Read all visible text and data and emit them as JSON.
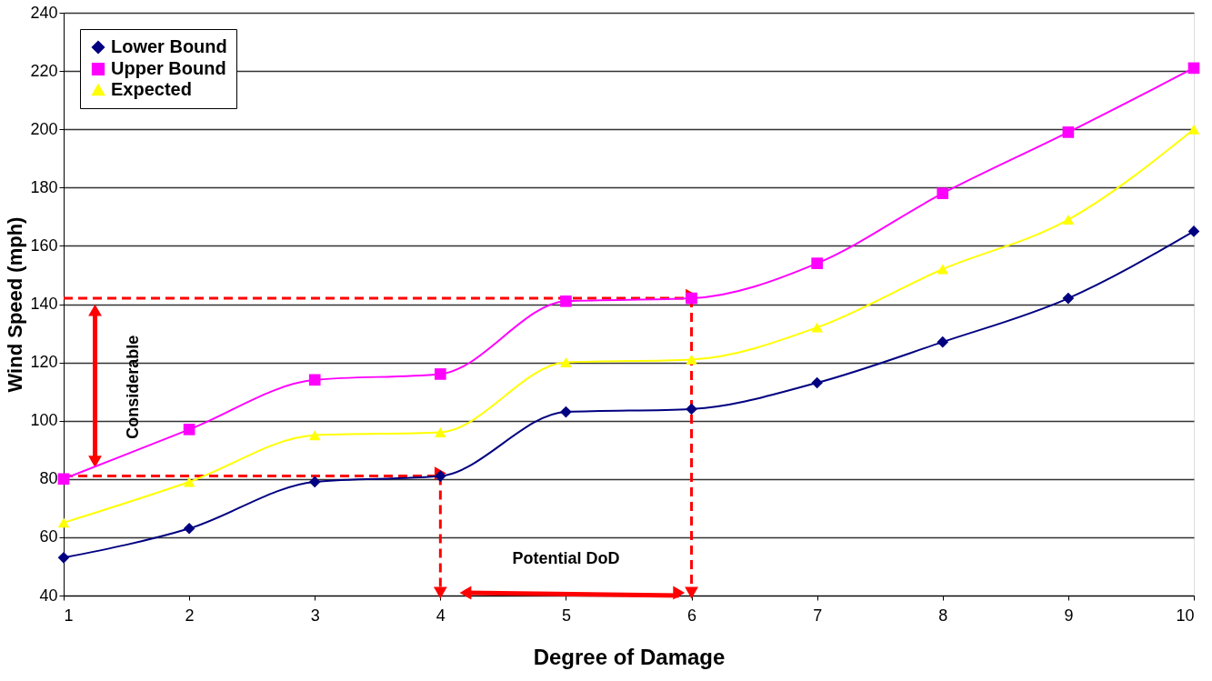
{
  "chart_data": {
    "type": "line",
    "xlabel": "Degree of Damage",
    "ylabel": "Wind Speed (mph)",
    "x": [
      1,
      2,
      3,
      4,
      5,
      6,
      7,
      8,
      9,
      10
    ],
    "series": [
      {
        "name": "Lower Bound",
        "color": "#000080",
        "marker": "diamond",
        "values": [
          53,
          63,
          79,
          81,
          103,
          104,
          113,
          127,
          142,
          165
        ]
      },
      {
        "name": "Upper Bound",
        "color": "#ff00ff",
        "marker": "square",
        "values": [
          80,
          97,
          114,
          116,
          141,
          142,
          154,
          178,
          199,
          221
        ]
      },
      {
        "name": "Expected",
        "color": "#ffff00",
        "marker": "triangle",
        "values": [
          65,
          79,
          95,
          96,
          120,
          121,
          132,
          152,
          169,
          200
        ]
      }
    ],
    "xlim": [
      1,
      10
    ],
    "xticks": [
      1,
      2,
      3,
      4,
      5,
      6,
      7,
      8,
      9,
      10
    ],
    "ylim": [
      40,
      240
    ],
    "yticks": [
      40,
      60,
      80,
      100,
      120,
      140,
      160,
      180,
      200,
      220,
      240
    ],
    "grid": "y",
    "legend": "top left",
    "line_style": "solid",
    "annotations": [
      "Considerable",
      "Potential DoD"
    ]
  }
}
